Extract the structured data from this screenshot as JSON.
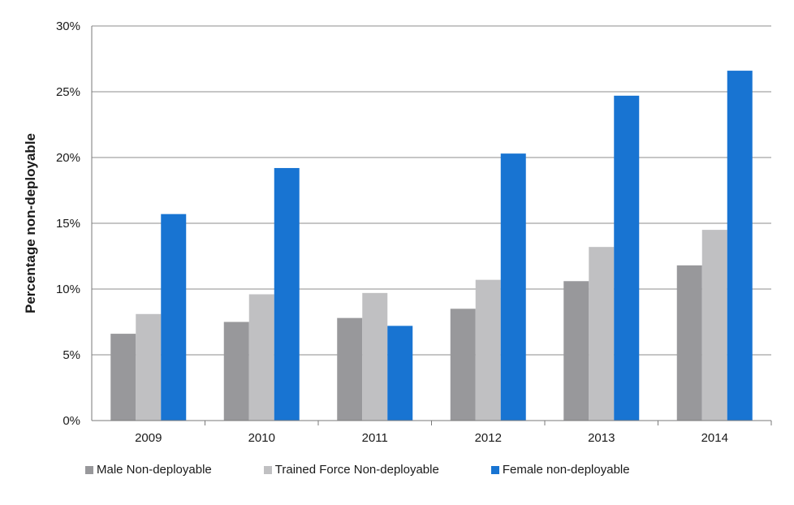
{
  "chart_data": {
    "type": "bar",
    "title": "",
    "xlabel": "",
    "ylabel": "Percentage non-deployable",
    "categories": [
      "2009",
      "2010",
      "2011",
      "2012",
      "2013",
      "2014"
    ],
    "ylim": [
      0,
      30
    ],
    "y_ticks": [
      "0%",
      "5%",
      "10%",
      "15%",
      "20%",
      "25%",
      "30%"
    ],
    "y_tick_values": [
      0,
      5,
      10,
      15,
      20,
      25,
      30
    ],
    "grid": true,
    "legend_position": "bottom-left",
    "series": [
      {
        "name": "Male Non-deployable",
        "color": "#98989b",
        "values": [
          6.6,
          7.5,
          7.8,
          8.5,
          10.6,
          11.8
        ]
      },
      {
        "name": "Trained Force Non-deployable",
        "color": "#c0c0c2",
        "values": [
          8.1,
          9.6,
          9.7,
          10.7,
          13.2,
          14.5
        ]
      },
      {
        "name": "Female non-deployable",
        "color": "#1874d2",
        "values": [
          15.7,
          19.2,
          7.2,
          20.3,
          24.7,
          26.6
        ]
      }
    ]
  }
}
